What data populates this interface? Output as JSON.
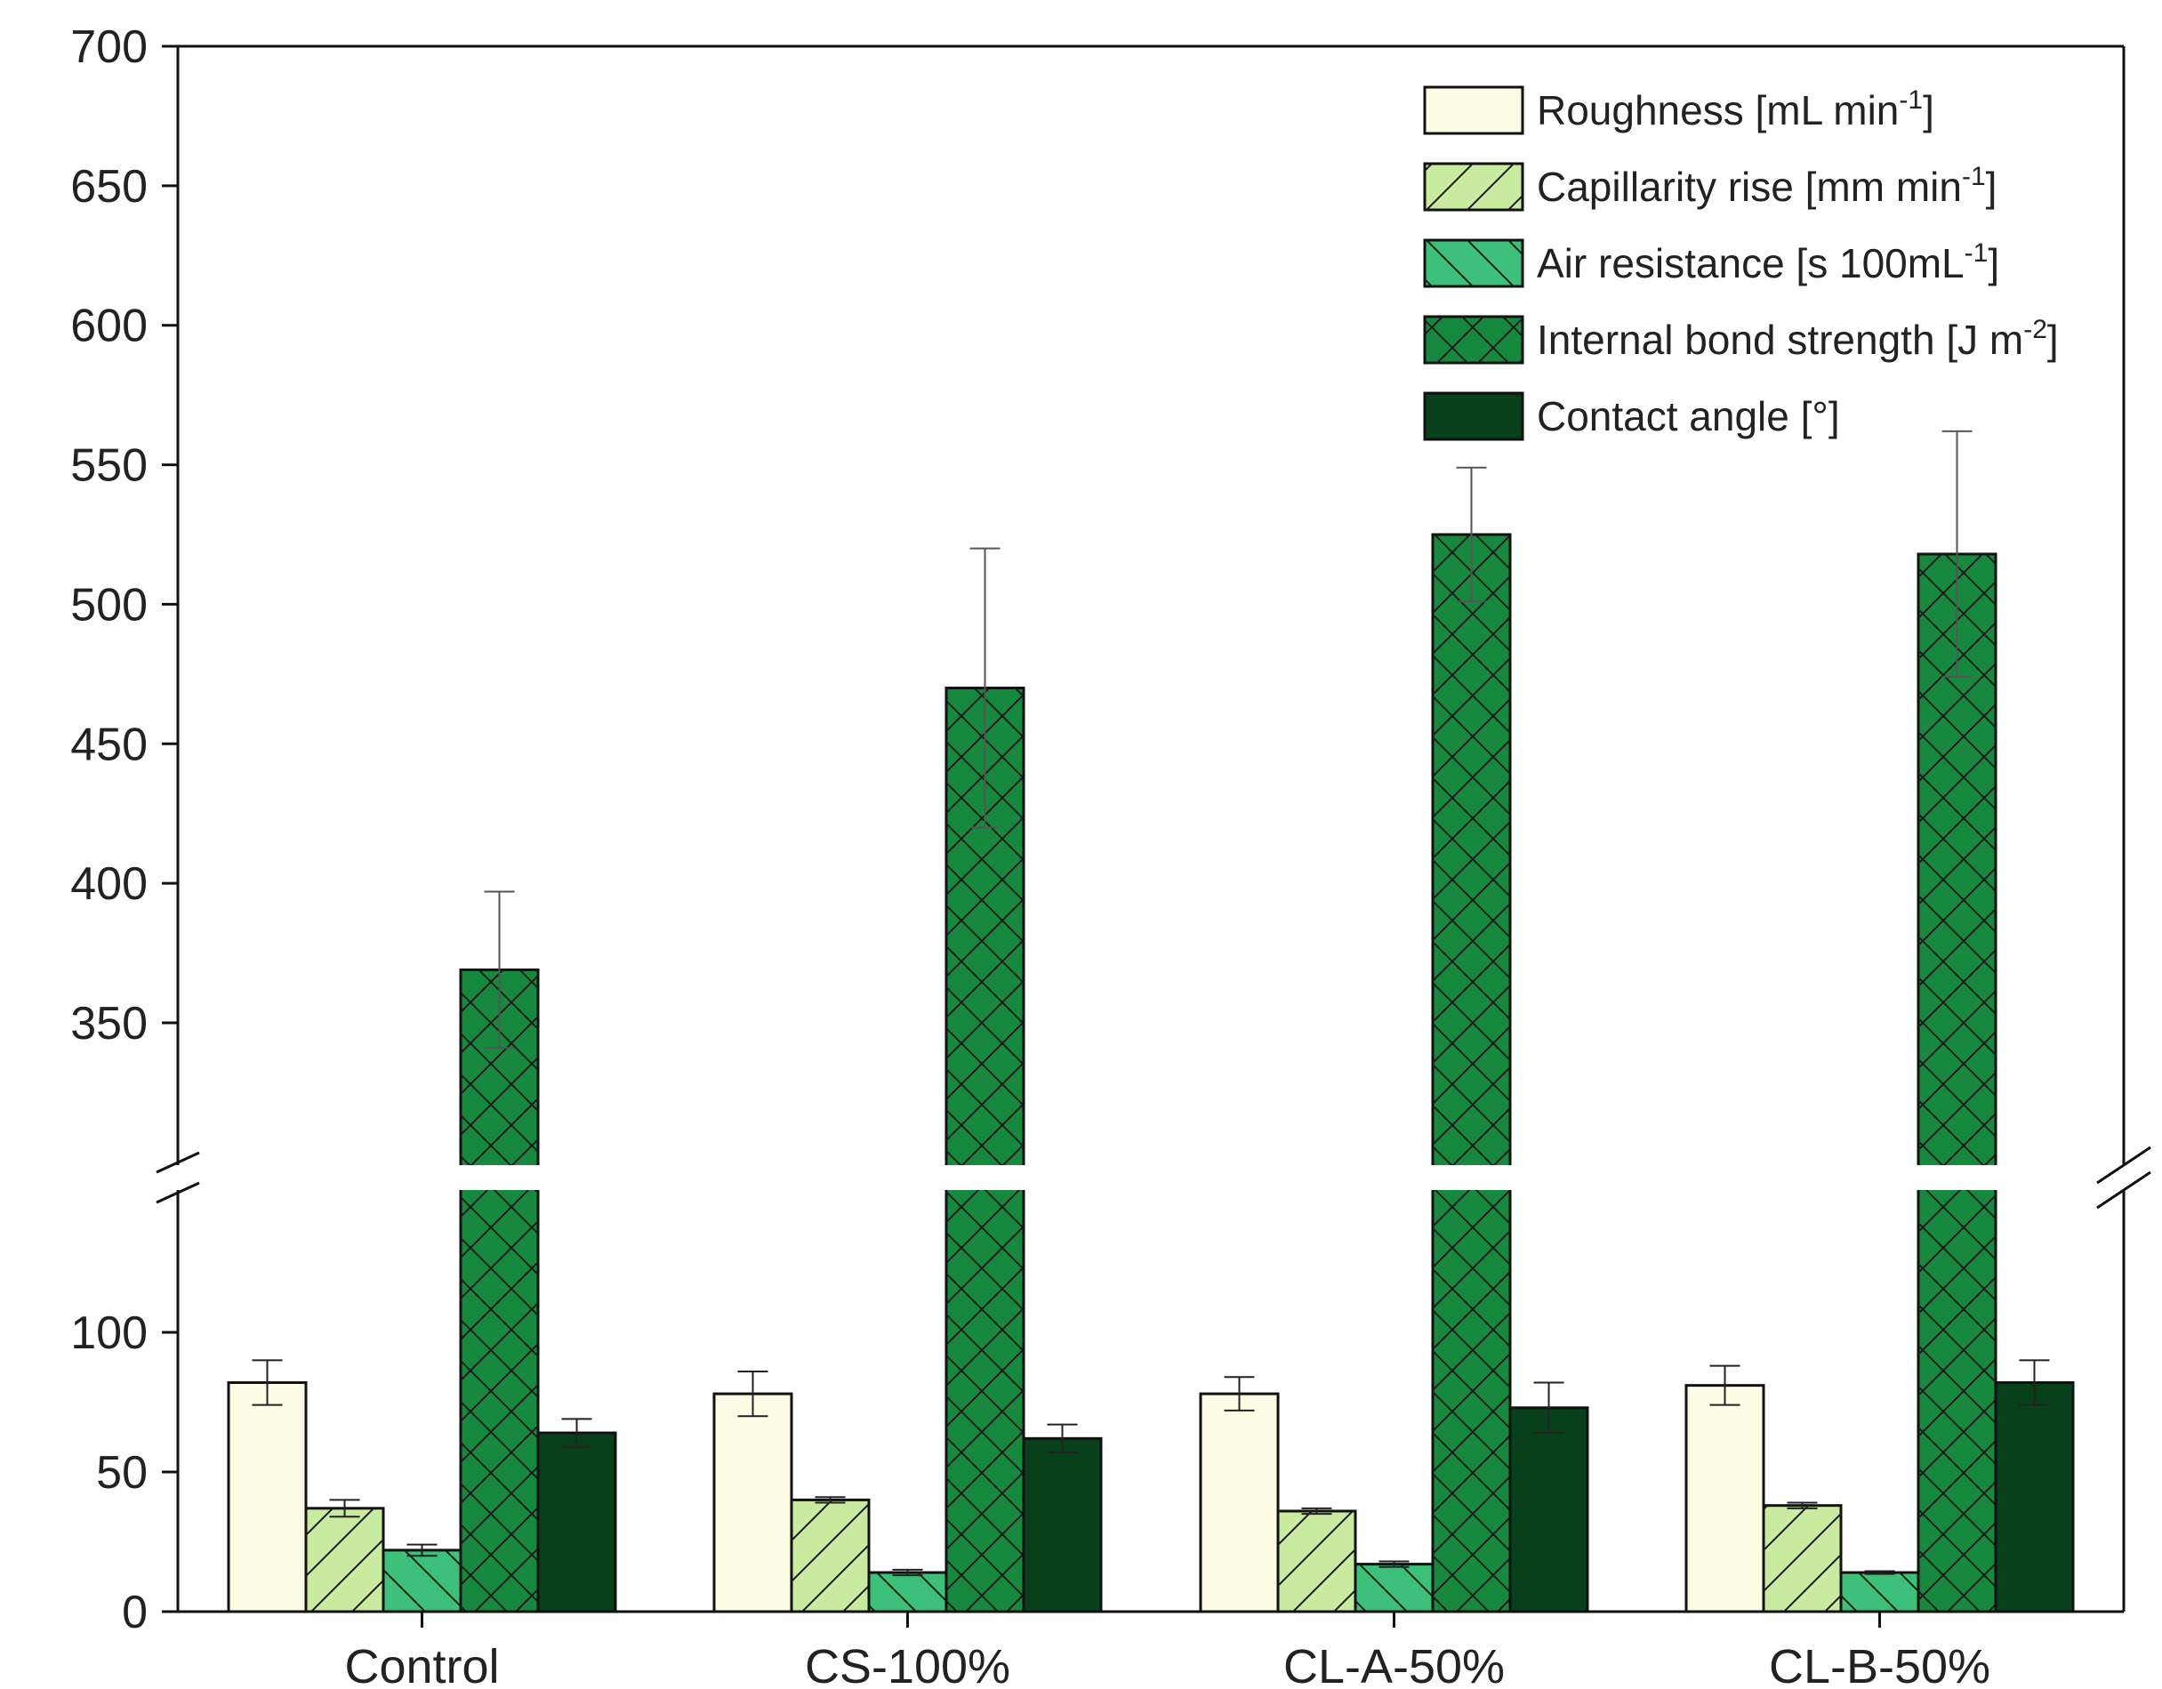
{
  "chart_data": {
    "type": "bar",
    "title": "",
    "xlabel": "",
    "ylabel": "",
    "categories": [
      "Control",
      "CS-100%",
      "CL-A-50%",
      "CL-B-50%"
    ],
    "y_axis": {
      "broken": true,
      "lower_segment": [
        0,
        150
      ],
      "upper_segment": [
        300,
        700
      ],
      "lower_ticks": [
        0,
        50,
        100
      ],
      "upper_ticks": [
        350,
        400,
        450,
        500,
        550,
        600,
        650,
        700
      ]
    },
    "series": [
      {
        "name": "Roughness [mL min",
        "unit_sup": "-1",
        "unit_close": "]",
        "pattern": "none",
        "color": "#fdfde6",
        "values": [
          82,
          78,
          78,
          81
        ],
        "errors": [
          8,
          8,
          6,
          7
        ]
      },
      {
        "name": "Capillarity rise [mm min",
        "unit_sup": "-1",
        "unit_close": "]",
        "pattern": "forward",
        "color": "#c8eba0",
        "values": [
          37,
          40,
          36,
          38
        ],
        "errors": [
          3,
          1,
          1,
          1
        ]
      },
      {
        "name": "Air resistance [s 100mL",
        "unit_sup": "-1",
        "unit_close": "]",
        "pattern": "backward",
        "color": "#3dc07a",
        "values": [
          22,
          14,
          17,
          14
        ],
        "errors": [
          2,
          1,
          1,
          0.5
        ]
      },
      {
        "name": "Internal bond strength [J m",
        "unit_sup": "-2",
        "unit_close": "]",
        "pattern": "cross",
        "color": "#17893f",
        "values": [
          369,
          470,
          525,
          518
        ],
        "errors": [
          28,
          50,
          24,
          44
        ]
      },
      {
        "name": "Contact angle [°]",
        "unit_sup": "",
        "unit_close": "",
        "pattern": "none",
        "color": "#08401c",
        "values": [
          64,
          62,
          73,
          82
        ],
        "errors": [
          5,
          5,
          9,
          8
        ]
      }
    ],
    "legend_position": "top-right",
    "grid": false
  }
}
